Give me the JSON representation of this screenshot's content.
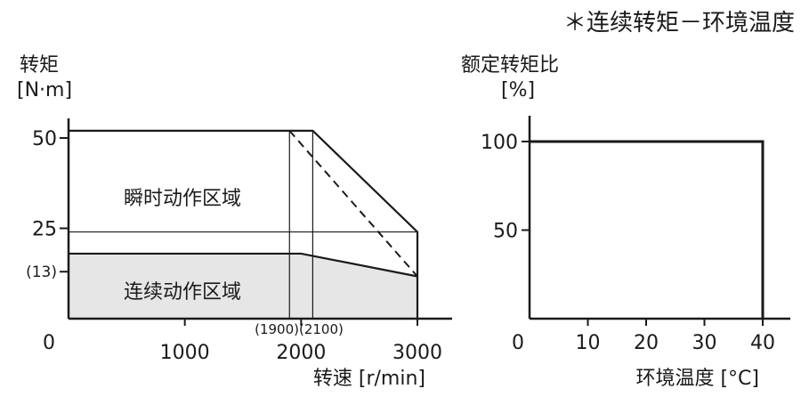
{
  "header": {
    "title": "＊连续转矩－环境温度"
  },
  "chart_data": [
    {
      "type": "area",
      "ylabel_line1": "转矩",
      "ylabel_line2": "[N·m]",
      "xlabel": "转速 [r/min]",
      "xlim": [
        0,
        3000
      ],
      "ylim": [
        0,
        55
      ],
      "origin_label": "0",
      "x_ticks": [
        {
          "value": 1000,
          "label": "1000"
        },
        {
          "value": 2000,
          "label": "2000"
        },
        {
          "value": 3000,
          "label": "3000"
        }
      ],
      "y_ticks": [
        {
          "value": 50,
          "label": "50"
        },
        {
          "value": 25,
          "label": "25"
        },
        {
          "value": 13,
          "label": "(13)"
        }
      ],
      "regions": [
        {
          "name": "瞬时动作区域",
          "points": [
            [
              0,
              52
            ],
            [
              2100,
              52
            ],
            [
              3000,
              24
            ],
            [
              3000,
              11.7
            ],
            [
              2000,
              18
            ],
            [
              0,
              18
            ]
          ]
        },
        {
          "name": "连续动作区域",
          "points": [
            [
              0,
              18
            ],
            [
              2000,
              18
            ],
            [
              3000,
              11.7
            ],
            [
              3000,
              0
            ],
            [
              0,
              0
            ]
          ],
          "fill": "#e6e6e6"
        }
      ],
      "series": [
        {
          "style": "solid",
          "points": [
            [
              0,
              52
            ],
            [
              2100,
              52
            ],
            [
              3000,
              24
            ],
            [
              3000,
              0
            ]
          ]
        },
        {
          "style": "solid",
          "points": [
            [
              0,
              18
            ],
            [
              2000,
              18
            ],
            [
              3000,
              11.7
            ]
          ]
        },
        {
          "style": "dashed",
          "points": [
            [
              1900,
              52
            ],
            [
              3000,
              11.7
            ]
          ]
        }
      ],
      "reference_lines": [
        {
          "orientation": "vertical",
          "x": 1900,
          "y_from": 0,
          "y_to": 52
        },
        {
          "orientation": "vertical",
          "x": 2100,
          "y_from": 0,
          "y_to": 52
        },
        {
          "orientation": "horizontal",
          "y": 24,
          "x_from": 0,
          "x_to": 3000
        }
      ],
      "annotations": [
        {
          "text": "(1900)(2100)"
        }
      ]
    },
    {
      "type": "line",
      "ylabel_line1": "额定转矩比",
      "ylabel_line2": "[%]",
      "xlabel": "环境温度 [°C]",
      "xlim": [
        0,
        45
      ],
      "ylim": [
        0,
        110
      ],
      "origin_label": "0",
      "x_ticks": [
        {
          "value": 10,
          "label": "10"
        },
        {
          "value": 20,
          "label": "20"
        },
        {
          "value": 30,
          "label": "30"
        },
        {
          "value": 40,
          "label": "40"
        }
      ],
      "y_ticks": [
        {
          "value": 100,
          "label": "100"
        },
        {
          "value": 50,
          "label": "50"
        }
      ],
      "series": [
        {
          "points": [
            [
              0,
              100
            ],
            [
              40,
              100
            ],
            [
              40,
              0
            ]
          ]
        }
      ]
    }
  ]
}
